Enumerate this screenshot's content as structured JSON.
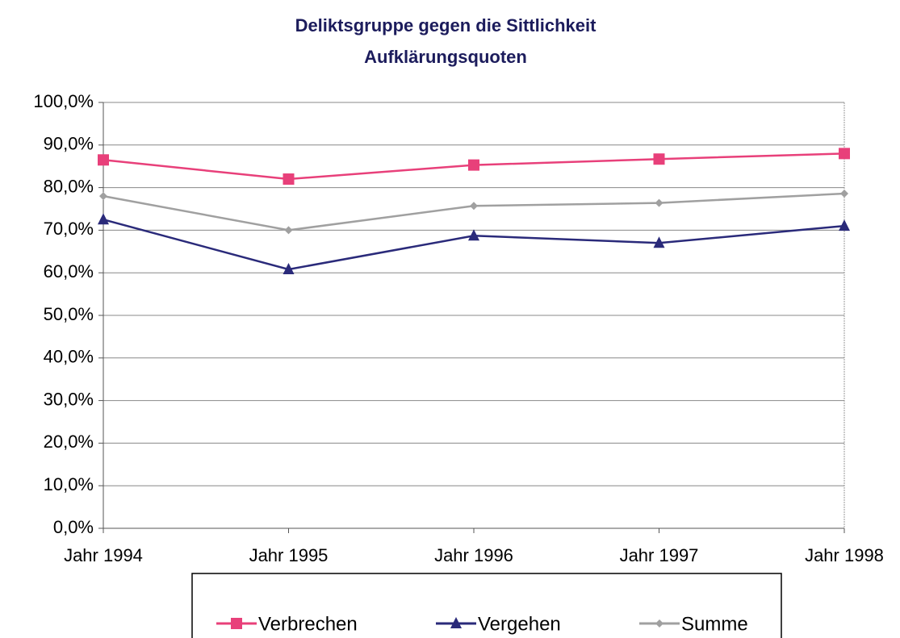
{
  "chart_data": {
    "type": "line",
    "title": "Deliktsgruppe gegen die Sittlichkeit",
    "subtitle": "Aufklärungsquoten",
    "categories": [
      "Jahr 1994",
      "Jahr 1995",
      "Jahr 1996",
      "Jahr 1997",
      "Jahr 1998"
    ],
    "series": [
      {
        "name": "Verbrechen",
        "color": "#e8407a",
        "marker": "square",
        "values": [
          86.5,
          82.0,
          85.3,
          86.7,
          88.0
        ]
      },
      {
        "name": "Vergehen",
        "color": "#2a2a7a",
        "marker": "triangle",
        "values": [
          72.5,
          60.8,
          68.7,
          67.0,
          71.0
        ]
      },
      {
        "name": "Summe",
        "color": "#a0a0a0",
        "marker": "diamond",
        "values": [
          78.0,
          70.0,
          75.7,
          76.4,
          78.6
        ]
      }
    ],
    "ylim": [
      0,
      100
    ],
    "yticks": [
      {
        "value": 0,
        "label": "0,0%"
      },
      {
        "value": 10,
        "label": "10,0%"
      },
      {
        "value": 20,
        "label": "20,0%"
      },
      {
        "value": 30,
        "label": "30,0%"
      },
      {
        "value": 40,
        "label": "40,0%"
      },
      {
        "value": 50,
        "label": "50,0%"
      },
      {
        "value": 60,
        "label": "60,0%"
      },
      {
        "value": 70,
        "label": "70,0%"
      },
      {
        "value": 80,
        "label": "80,0%"
      },
      {
        "value": 90,
        "label": "90,0%"
      },
      {
        "value": 100,
        "label": "100,0%"
      }
    ],
    "grid": true,
    "legend": "bottom"
  }
}
